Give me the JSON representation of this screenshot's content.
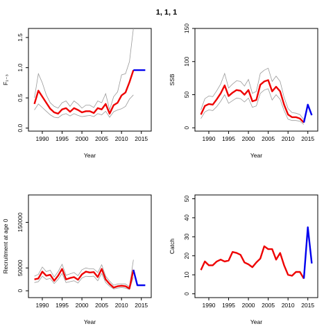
{
  "figure": {
    "title": "1, 1, 1"
  },
  "colors": {
    "median": "#ee0000",
    "bounds": "#999999",
    "forecast": "#0000ee",
    "axis": "#000000"
  },
  "chart_data": [
    {
      "type": "line",
      "ylabel": "F₁₋₃",
      "xlabel": "Year",
      "xlim": [
        1986.5,
        2017.5
      ],
      "ylim": [
        -0.05,
        1.65
      ],
      "xticks": [
        1990,
        1995,
        2000,
        2005,
        2010,
        2015
      ],
      "xtick_labels": [
        "1990",
        "1995",
        "2000",
        "2005",
        "2010",
        "2015"
      ],
      "yticks": [
        0,
        0.5,
        1,
        1.5
      ],
      "ytick_labels": [
        "0.0",
        "0.5",
        "1.0",
        "1.5"
      ],
      "x": [
        1988,
        1989,
        1990,
        1991,
        1992,
        1993,
        1994,
        1995,
        1996,
        1997,
        1998,
        1999,
        2000,
        2001,
        2002,
        2003,
        2004,
        2005,
        2006,
        2007,
        2008,
        2009,
        2010,
        2011,
        2012,
        2013
      ],
      "median": [
        0.4,
        0.62,
        0.52,
        0.42,
        0.32,
        0.26,
        0.24,
        0.31,
        0.33,
        0.27,
        0.33,
        0.3,
        0.26,
        0.28,
        0.28,
        0.25,
        0.33,
        0.31,
        0.4,
        0.24,
        0.38,
        0.42,
        0.54,
        0.59,
        0.76,
        0.96
      ],
      "upper": [
        0.5,
        0.9,
        0.75,
        0.55,
        0.42,
        0.36,
        0.33,
        0.42,
        0.45,
        0.36,
        0.45,
        0.4,
        0.33,
        0.38,
        0.38,
        0.34,
        0.45,
        0.42,
        0.57,
        0.3,
        0.52,
        0.6,
        0.88,
        0.9,
        1.1,
        1.65
      ],
      "lower": [
        0.3,
        0.4,
        0.34,
        0.28,
        0.22,
        0.18,
        0.17,
        0.22,
        0.24,
        0.2,
        0.24,
        0.21,
        0.19,
        0.2,
        0.21,
        0.19,
        0.24,
        0.22,
        0.28,
        0.18,
        0.27,
        0.3,
        0.32,
        0.36,
        0.48,
        0.55
      ],
      "forecast_x": [
        2013,
        2014,
        2015,
        2016
      ],
      "forecast": [
        0.96,
        0.96,
        0.96,
        0.96
      ]
    },
    {
      "type": "line",
      "ylabel": "SSB",
      "xlabel": "Year",
      "xlim": [
        1986.5,
        2017.5
      ],
      "ylim": [
        -5,
        150
      ],
      "xticks": [
        1990,
        1995,
        2000,
        2005,
        2010,
        2015
      ],
      "xtick_labels": [
        "1990",
        "1995",
        "2000",
        "2005",
        "2010",
        "2015"
      ],
      "yticks": [
        0,
        50,
        100,
        150
      ],
      "ytick_labels": [
        "0",
        "50",
        "100",
        "150"
      ],
      "x": [
        1988,
        1989,
        1990,
        1991,
        1992,
        1993,
        1994,
        1995,
        1996,
        1997,
        1998,
        1999,
        2000,
        2001,
        2002,
        2003,
        2004,
        2005,
        2006,
        2007,
        2008,
        2009,
        2010,
        2011,
        2012,
        2013,
        2014
      ],
      "median": [
        20,
        33,
        36,
        35,
        43,
        52,
        64,
        48,
        53,
        57,
        56,
        50,
        57,
        40,
        42,
        65,
        70,
        72,
        55,
        62,
        55,
        35,
        20,
        16,
        16,
        14,
        8
      ],
      "upper": [
        27,
        44,
        48,
        47,
        56,
        66,
        82,
        60,
        66,
        71,
        70,
        63,
        73,
        52,
        55,
        82,
        87,
        90,
        70,
        78,
        70,
        46,
        29,
        23,
        22,
        20,
        12
      ],
      "lower": [
        14,
        24,
        27,
        26,
        32,
        40,
        50,
        37,
        41,
        45,
        44,
        39,
        45,
        31,
        33,
        52,
        57,
        59,
        42,
        50,
        43,
        26,
        13,
        11,
        11,
        10,
        5
      ],
      "forecast_x": [
        2014,
        2015,
        2016
      ],
      "forecast": [
        8,
        35,
        19
      ]
    },
    {
      "type": "line",
      "ylabel": "Recruitment at age 0",
      "xlabel": "Year",
      "xlim": [
        1986.5,
        2017.5
      ],
      "ylim": [
        -15000,
        210000
      ],
      "xticks": [
        1990,
        1995,
        2000,
        2005,
        2010,
        2015
      ],
      "xtick_labels": [
        "1990",
        "1995",
        "2000",
        "2005",
        "2010",
        "2015"
      ],
      "yticks": [
        0,
        50000,
        150000
      ],
      "ytick_labels": [
        "0",
        "50000",
        "150000"
      ],
      "x": [
        1988,
        1989,
        1990,
        1991,
        1992,
        1993,
        1994,
        1995,
        1996,
        1997,
        1998,
        1999,
        2000,
        2001,
        2002,
        2003,
        2004,
        2005,
        2006,
        2007,
        2008,
        2009,
        2010,
        2011,
        2012,
        2013
      ],
      "median": [
        25000,
        27000,
        42000,
        33000,
        35000,
        22000,
        33000,
        48000,
        25000,
        28000,
        30000,
        24000,
        36000,
        42000,
        40000,
        41000,
        30000,
        48000,
        25000,
        15000,
        7000,
        10000,
        11000,
        10000,
        5000,
        46000
      ],
      "upper": [
        32000,
        36000,
        52000,
        42000,
        45000,
        30000,
        42000,
        58000,
        34000,
        37000,
        40000,
        33000,
        46000,
        50000,
        48000,
        48000,
        40000,
        57000,
        32000,
        21000,
        12000,
        15000,
        15000,
        15000,
        9000,
        68000
      ],
      "lower": [
        18000,
        20000,
        32000,
        25000,
        27000,
        16000,
        25000,
        38000,
        18000,
        20000,
        22000,
        17000,
        28000,
        32000,
        31000,
        32000,
        22000,
        38000,
        18000,
        10000,
        4000,
        6000,
        7000,
        6000,
        3000,
        30000
      ],
      "forecast_x": [
        2013,
        2014,
        2015,
        2016
      ],
      "forecast": [
        46000,
        12000,
        12000,
        12000
      ]
    },
    {
      "type": "line",
      "ylabel": "Catch",
      "xlabel": "Year",
      "xlim": [
        1986.5,
        2017.5
      ],
      "ylim": [
        -2,
        52
      ],
      "xticks": [
        1990,
        1995,
        2000,
        2005,
        2010,
        2015
      ],
      "xtick_labels": [
        "1990",
        "1995",
        "2000",
        "2005",
        "2010",
        "2015"
      ],
      "yticks": [
        0,
        10,
        20,
        30,
        40,
        50
      ],
      "ytick_labels": [
        "0",
        "10",
        "20",
        "30",
        "40",
        "50"
      ],
      "x": [
        1988,
        1989,
        1990,
        1991,
        1992,
        1993,
        1994,
        1995,
        1996,
        1997,
        1998,
        1999,
        2000,
        2001,
        2002,
        2003,
        2004,
        2005,
        2006,
        2007,
        2008,
        2009,
        2010,
        2011,
        2012,
        2013,
        2014
      ],
      "median": [
        12.5,
        17,
        15,
        15,
        17,
        18,
        17,
        17.5,
        22,
        21.5,
        20.5,
        16.5,
        15.5,
        14,
        16.5,
        18.5,
        25,
        23.5,
        23.5,
        18,
        21.5,
        15,
        10,
        9.5,
        11.5,
        11.5,
        8
      ],
      "forecast_x": [
        2014,
        2015,
        2016
      ],
      "forecast": [
        8,
        35,
        16
      ]
    }
  ]
}
